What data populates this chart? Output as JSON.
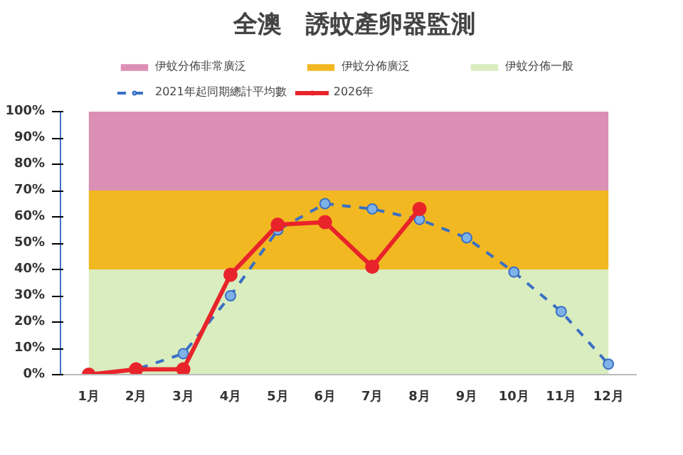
{
  "chart_data": {
    "type": "line",
    "title": "全澳　誘蚊產卵器監測",
    "categories": [
      "1月",
      "2月",
      "3月",
      "4月",
      "5月",
      "6月",
      "7月",
      "8月",
      "9月",
      "10月",
      "11月",
      "12月"
    ],
    "series": [
      {
        "name": "2021年起同期總計平均數",
        "color": "#3a6fc4",
        "line_style": "dashed",
        "marker": "circle",
        "values": [
          0,
          2,
          8,
          30,
          55,
          65,
          63,
          59,
          52,
          39,
          24,
          4
        ]
      },
      {
        "name": "2026年",
        "color": "#e8242a",
        "line_style": "solid",
        "marker": "circle",
        "values": [
          0,
          2,
          2,
          38,
          57,
          58,
          41,
          63,
          null,
          null,
          null,
          null
        ]
      }
    ],
    "bands": [
      {
        "axis": "y",
        "from": 70,
        "to": 100,
        "label": "伊蚊分佈非常廣泛",
        "color": "#dc8fb4"
      },
      {
        "axis": "y",
        "from": 40,
        "to": 70,
        "label": "伊蚊分佈廣泛",
        "color": "#f2b822"
      },
      {
        "axis": "y",
        "from": 0,
        "to": 40,
        "label": "伊蚊分佈一般",
        "color": "#d9edbf"
      }
    ],
    "ylim": [
      0,
      100
    ],
    "yticks": [
      {
        "value": 0,
        "label": "0%"
      },
      {
        "value": 10,
        "label": "10%"
      },
      {
        "value": 20,
        "label": "20%"
      },
      {
        "value": 30,
        "label": "30%"
      },
      {
        "value": 40,
        "label": "40%"
      },
      {
        "value": 50,
        "label": "50%"
      },
      {
        "value": 60,
        "label": "60%"
      },
      {
        "value": 70,
        "label": "70%"
      },
      {
        "value": 80,
        "label": "80%"
      },
      {
        "value": 90,
        "label": "90%"
      },
      {
        "value": 100,
        "label": "100%"
      }
    ],
    "grid": false,
    "legend": "top"
  }
}
